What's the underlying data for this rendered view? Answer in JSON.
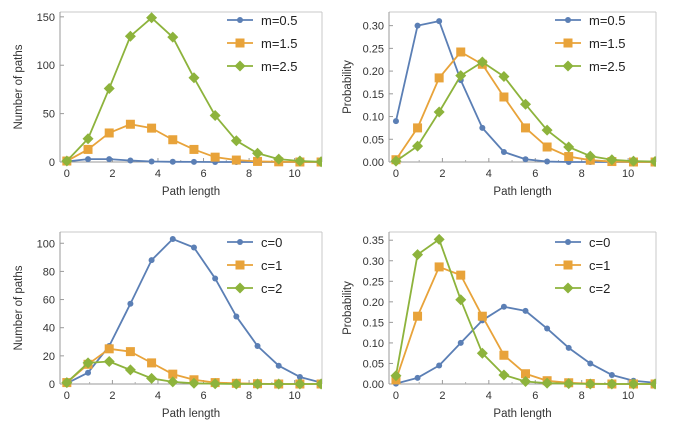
{
  "chart_data": [
    {
      "type": "line",
      "xlabel": "Path length",
      "ylabel": "Number of paths",
      "xlim": [
        -0.3,
        11.2
      ],
      "ylim": [
        0,
        155
      ],
      "xticks": [
        "0",
        "2",
        "4",
        "6",
        "8",
        "10"
      ],
      "yticks": [
        "0",
        "50",
        "100",
        "150"
      ],
      "legend_position": "top-right",
      "x": [
        0,
        0.93,
        1.86,
        2.79,
        3.72,
        4.65,
        5.58,
        6.51,
        7.44,
        8.37,
        9.3,
        10.23,
        11.16
      ],
      "series": [
        {
          "name": "m=0.5",
          "color": "#5b7fb5",
          "marker": "circle",
          "values": [
            0.5,
            3,
            3,
            1.5,
            0.5,
            0.2,
            0.1,
            0,
            0,
            0,
            0,
            0,
            0
          ]
        },
        {
          "name": "m=1.5",
          "color": "#e8a33a",
          "marker": "square",
          "values": [
            1,
            13,
            30,
            39,
            35,
            23,
            13,
            5,
            2,
            0.6,
            0.2,
            0,
            0
          ]
        },
        {
          "name": "m=2.5",
          "color": "#8db33c",
          "marker": "diamond",
          "values": [
            1,
            24,
            76,
            130,
            149,
            129,
            87,
            48,
            22,
            9,
            3,
            1,
            0.2
          ]
        }
      ]
    },
    {
      "type": "line",
      "xlabel": "Path length",
      "ylabel": "Probability",
      "xlim": [
        -0.3,
        11.2
      ],
      "ylim": [
        0,
        0.33
      ],
      "xticks": [
        "0",
        "2",
        "4",
        "6",
        "8",
        "10"
      ],
      "yticks": [
        "0.00",
        "0.05",
        "0.10",
        "0.15",
        "0.20",
        "0.25",
        "0.30"
      ],
      "legend_position": "top-right",
      "x": [
        0,
        0.93,
        1.86,
        2.79,
        3.72,
        4.65,
        5.58,
        6.51,
        7.44,
        8.37,
        9.3,
        10.23,
        11.16
      ],
      "series": [
        {
          "name": "m=0.5",
          "color": "#5b7fb5",
          "marker": "circle",
          "values": [
            0.09,
            0.3,
            0.31,
            0.18,
            0.075,
            0.022,
            0.006,
            0.001,
            0,
            0,
            0,
            0,
            0
          ]
        },
        {
          "name": "m=1.5",
          "color": "#e8a33a",
          "marker": "square",
          "values": [
            0.005,
            0.075,
            0.185,
            0.242,
            0.215,
            0.143,
            0.075,
            0.033,
            0.012,
            0.004,
            0.001,
            0,
            0
          ]
        },
        {
          "name": "m=2.5",
          "color": "#8db33c",
          "marker": "diamond",
          "values": [
            0.002,
            0.035,
            0.11,
            0.19,
            0.22,
            0.188,
            0.127,
            0.07,
            0.033,
            0.013,
            0.005,
            0.002,
            0.001
          ]
        }
      ]
    },
    {
      "type": "line",
      "xlabel": "Path length",
      "ylabel": "Number of paths",
      "xlim": [
        -0.3,
        11.2
      ],
      "ylim": [
        0,
        108
      ],
      "xticks": [
        "0",
        "2",
        "4",
        "6",
        "8",
        "10"
      ],
      "yticks": [
        "0",
        "20",
        "40",
        "60",
        "80",
        "100"
      ],
      "legend_position": "top-right",
      "x": [
        0,
        0.93,
        1.86,
        2.79,
        3.72,
        4.65,
        5.58,
        6.51,
        7.44,
        8.37,
        9.3,
        10.23,
        11.16
      ],
      "series": [
        {
          "name": "c=0",
          "color": "#5b7fb5",
          "marker": "circle",
          "values": [
            0.5,
            8,
            27,
            57,
            88,
            103,
            97,
            75,
            48,
            27,
            13,
            5,
            1
          ]
        },
        {
          "name": "c=1",
          "color": "#e8a33a",
          "marker": "square",
          "values": [
            1,
            14,
            25,
            23,
            15,
            7,
            3,
            1,
            0.5,
            0.2,
            0,
            0,
            0
          ]
        },
        {
          "name": "c=2",
          "color": "#8db33c",
          "marker": "diamond",
          "values": [
            1,
            15,
            16,
            10,
            4,
            1.5,
            0.5,
            0.2,
            0,
            0,
            0,
            0,
            0
          ]
        }
      ]
    },
    {
      "type": "line",
      "xlabel": "Path length",
      "ylabel": "Probability",
      "xlim": [
        -0.3,
        11.2
      ],
      "ylim": [
        0,
        0.37
      ],
      "xticks": [
        "0",
        "2",
        "4",
        "6",
        "8",
        "10"
      ],
      "yticks": [
        "0.00",
        "0.05",
        "0.10",
        "0.15",
        "0.20",
        "0.25",
        "0.30",
        "0.35"
      ],
      "legend_position": "top-right",
      "x": [
        0,
        0.93,
        1.86,
        2.79,
        3.72,
        4.65,
        5.58,
        6.51,
        7.44,
        8.37,
        9.3,
        10.23,
        11.16
      ],
      "series": [
        {
          "name": "c=0",
          "color": "#5b7fb5",
          "marker": "circle",
          "values": [
            0.001,
            0.015,
            0.045,
            0.1,
            0.155,
            0.188,
            0.178,
            0.135,
            0.088,
            0.05,
            0.022,
            0.008,
            0.003
          ]
        },
        {
          "name": "c=1",
          "color": "#e8a33a",
          "marker": "square",
          "values": [
            0.01,
            0.165,
            0.285,
            0.265,
            0.165,
            0.07,
            0.025,
            0.008,
            0.003,
            0.001,
            0,
            0,
            0
          ]
        },
        {
          "name": "c=2",
          "color": "#8db33c",
          "marker": "diamond",
          "values": [
            0.02,
            0.315,
            0.352,
            0.205,
            0.075,
            0.022,
            0.006,
            0.002,
            0.001,
            0,
            0,
            0,
            0
          ]
        }
      ]
    }
  ]
}
